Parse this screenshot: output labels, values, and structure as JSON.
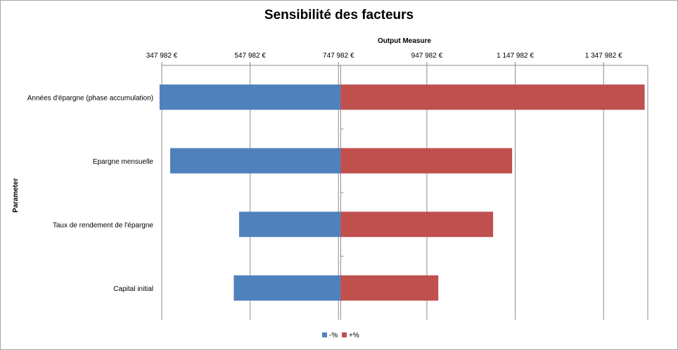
{
  "chart_data": {
    "type": "bar",
    "orientation": "horizontal",
    "title": "Sensibilité des facteurs",
    "xlabel": "Output Measure",
    "ylabel": "Parameter",
    "base_value": 752982,
    "xlim": [
      347982,
      1447982
    ],
    "x_ticks": [
      347982,
      547982,
      747982,
      947982,
      1147982,
      1347982
    ],
    "x_tick_labels": [
      "347 982 €",
      "547 982 €",
      "747 982 €",
      "947 982 €",
      "1 147 982 €",
      "1 347 982 €"
    ],
    "categories": [
      "Années d'épargne (phase accumulation)",
      "Epargne mensuelle",
      "Taux de rendement de l'épargne",
      "Capital initial"
    ],
    "series": [
      {
        "name": "-%",
        "color": "#4f81bd",
        "values": [
          342982,
          366982,
          522982,
          510982
        ]
      },
      {
        "name": "+%",
        "color": "#c0504d",
        "values": [
          1440982,
          1140982,
          1097982,
          973982
        ]
      }
    ],
    "grid": true,
    "legend_position": "bottom"
  }
}
